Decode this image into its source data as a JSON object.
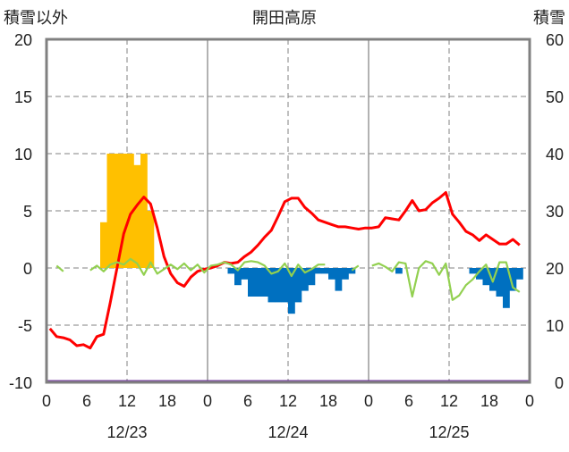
{
  "chart_data": {
    "type": "bar",
    "title": "開田高原",
    "ylabel_left": "積雪以外",
    "ylabel_right": "積雪",
    "ylim_left": [
      -10,
      20
    ],
    "ylim_right": [
      0,
      60
    ],
    "yticks_left": [
      "20",
      "15",
      "10",
      "5",
      "0",
      "-5",
      "-10"
    ],
    "yticks_right": [
      "60",
      "50",
      "40",
      "30",
      "20",
      "10",
      "0"
    ],
    "xticks": [
      "0",
      "6",
      "12",
      "18",
      "0",
      "6",
      "12",
      "18",
      "0",
      "6",
      "12",
      "18",
      "0"
    ],
    "day_labels": [
      "12/23",
      "12/24",
      "12/25"
    ],
    "grid": true,
    "colors": {
      "precip_positive": "#ffc000",
      "precip_negative": "#0070c0",
      "temperature": "#ff0000",
      "green_series": "#92d050",
      "snow_depth": "#7030a0",
      "frame": "#808080"
    },
    "series": [
      {
        "key": "positive_bars",
        "values": [
          [
            8,
            4
          ],
          [
            9,
            10
          ],
          [
            10,
            10
          ],
          [
            11,
            10
          ],
          [
            12,
            10
          ],
          [
            13,
            9
          ],
          [
            14,
            10
          ],
          [
            15,
            5
          ]
        ]
      },
      {
        "key": "negative_bars",
        "values": [
          [
            27,
            -0.5
          ],
          [
            28,
            -1.5
          ],
          [
            29,
            -1
          ],
          [
            30,
            -2.5
          ],
          [
            31,
            -2.5
          ],
          [
            32,
            -2.5
          ],
          [
            33,
            -3
          ],
          [
            34,
            -3
          ],
          [
            35,
            -3
          ],
          [
            36,
            -4
          ],
          [
            37,
            -3
          ],
          [
            38,
            -2
          ],
          [
            39,
            -1.5
          ],
          [
            40,
            -0.5
          ],
          [
            41,
            -0.5
          ],
          [
            42,
            -1
          ],
          [
            43,
            -2
          ],
          [
            44,
            -1
          ],
          [
            45,
            -0.5
          ],
          [
            52,
            -0.5
          ],
          [
            63,
            -0.5
          ],
          [
            64,
            -1
          ],
          [
            65,
            -1.5
          ],
          [
            66,
            -2
          ],
          [
            67,
            -2.5
          ],
          [
            68,
            -3.5
          ],
          [
            69,
            -2
          ],
          [
            70,
            -1
          ]
        ]
      },
      {
        "key": "red_line",
        "values": [
          [
            0,
            -5.3
          ],
          [
            1,
            -6.0
          ],
          [
            2,
            -6.1
          ],
          [
            3,
            -6.3
          ],
          [
            4,
            -6.8
          ],
          [
            5,
            -6.7
          ],
          [
            6,
            -7.0
          ],
          [
            7,
            -6.0
          ],
          [
            8,
            -5.8
          ],
          [
            9,
            -3.0
          ],
          [
            10,
            0.0
          ],
          [
            11,
            3.0
          ],
          [
            12,
            4.7
          ],
          [
            13,
            5.5
          ],
          [
            14,
            6.2
          ],
          [
            15,
            5.6
          ],
          [
            16,
            3.5
          ],
          [
            17,
            1.0
          ],
          [
            18,
            -0.5
          ],
          [
            19,
            -1.3
          ],
          [
            20,
            -1.6
          ],
          [
            21,
            -0.8
          ],
          [
            22,
            -0.3
          ],
          [
            23,
            -0.1
          ],
          [
            24,
            0.0
          ],
          [
            25,
            0.2
          ],
          [
            26,
            0.5
          ],
          [
            27,
            0.4
          ],
          [
            28,
            0.5
          ],
          [
            29,
            1.0
          ],
          [
            30,
            1.4
          ],
          [
            31,
            2.0
          ],
          [
            32,
            2.7
          ],
          [
            33,
            3.3
          ],
          [
            34,
            4.5
          ],
          [
            35,
            5.8
          ],
          [
            36,
            6.1
          ],
          [
            37,
            6.1
          ],
          [
            38,
            5.3
          ],
          [
            39,
            4.8
          ],
          [
            40,
            4.2
          ],
          [
            41,
            4.0
          ],
          [
            42,
            3.8
          ],
          [
            43,
            3.6
          ],
          [
            44,
            3.6
          ],
          [
            45,
            3.5
          ],
          [
            46,
            3.4
          ],
          [
            47,
            3.5
          ],
          [
            48,
            3.5
          ],
          [
            49,
            3.6
          ],
          [
            50,
            4.4
          ],
          [
            51,
            4.3
          ],
          [
            52,
            4.2
          ],
          [
            53,
            5.0
          ],
          [
            54,
            5.9
          ],
          [
            55,
            5.0
          ],
          [
            56,
            5.1
          ],
          [
            57,
            5.7
          ],
          [
            58,
            6.1
          ],
          [
            59,
            6.6
          ],
          [
            60,
            4.7
          ],
          [
            61,
            4.0
          ],
          [
            62,
            3.2
          ],
          [
            63,
            2.9
          ],
          [
            64,
            2.4
          ],
          [
            65,
            2.9
          ],
          [
            66,
            2.5
          ],
          [
            67,
            2.1
          ],
          [
            68,
            2.1
          ],
          [
            69,
            2.5
          ],
          [
            70,
            2.0
          ]
        ]
      },
      {
        "key": "green_line",
        "values": [
          [
            null,
            0.2,
            -0.3,
            null,
            null,
            null,
            -0.2,
            0.2,
            -0.3,
            0.3,
            0.5,
            0.3,
            0.8,
            0.4,
            -0.6,
            0.5,
            -0.5,
            -0.1,
            0.3,
            -0.1,
            0.4,
            -0.2,
            0.3,
            -0.4,
            0.2,
            0.3,
            0.5,
            0.3,
            -0.2,
            0.5,
            0.6,
            0.5,
            0.2,
            -0.5,
            -0.3,
            0.4,
            -0.7,
            0.3,
            -0.4,
            -0.1,
            0.3,
            0.3,
            null,
            null,
            null,
            -0.2,
            0.2,
            null,
            0.2,
            0.4,
            0.1,
            -0.3,
            0.5,
            0.4,
            -2.5,
            0.0,
            0.6,
            0.4,
            -0.6,
            0.4,
            -2.8,
            -2.4,
            -1.5,
            -1.0,
            -0.3,
            0.3,
            -1.2,
            0.5,
            0.5,
            -1.7,
            -2.1
          ]
        ]
      },
      {
        "key": "snow_line",
        "values": [
          [
            0,
            0
          ],
          [
            72,
            0
          ]
        ]
      }
    ]
  }
}
